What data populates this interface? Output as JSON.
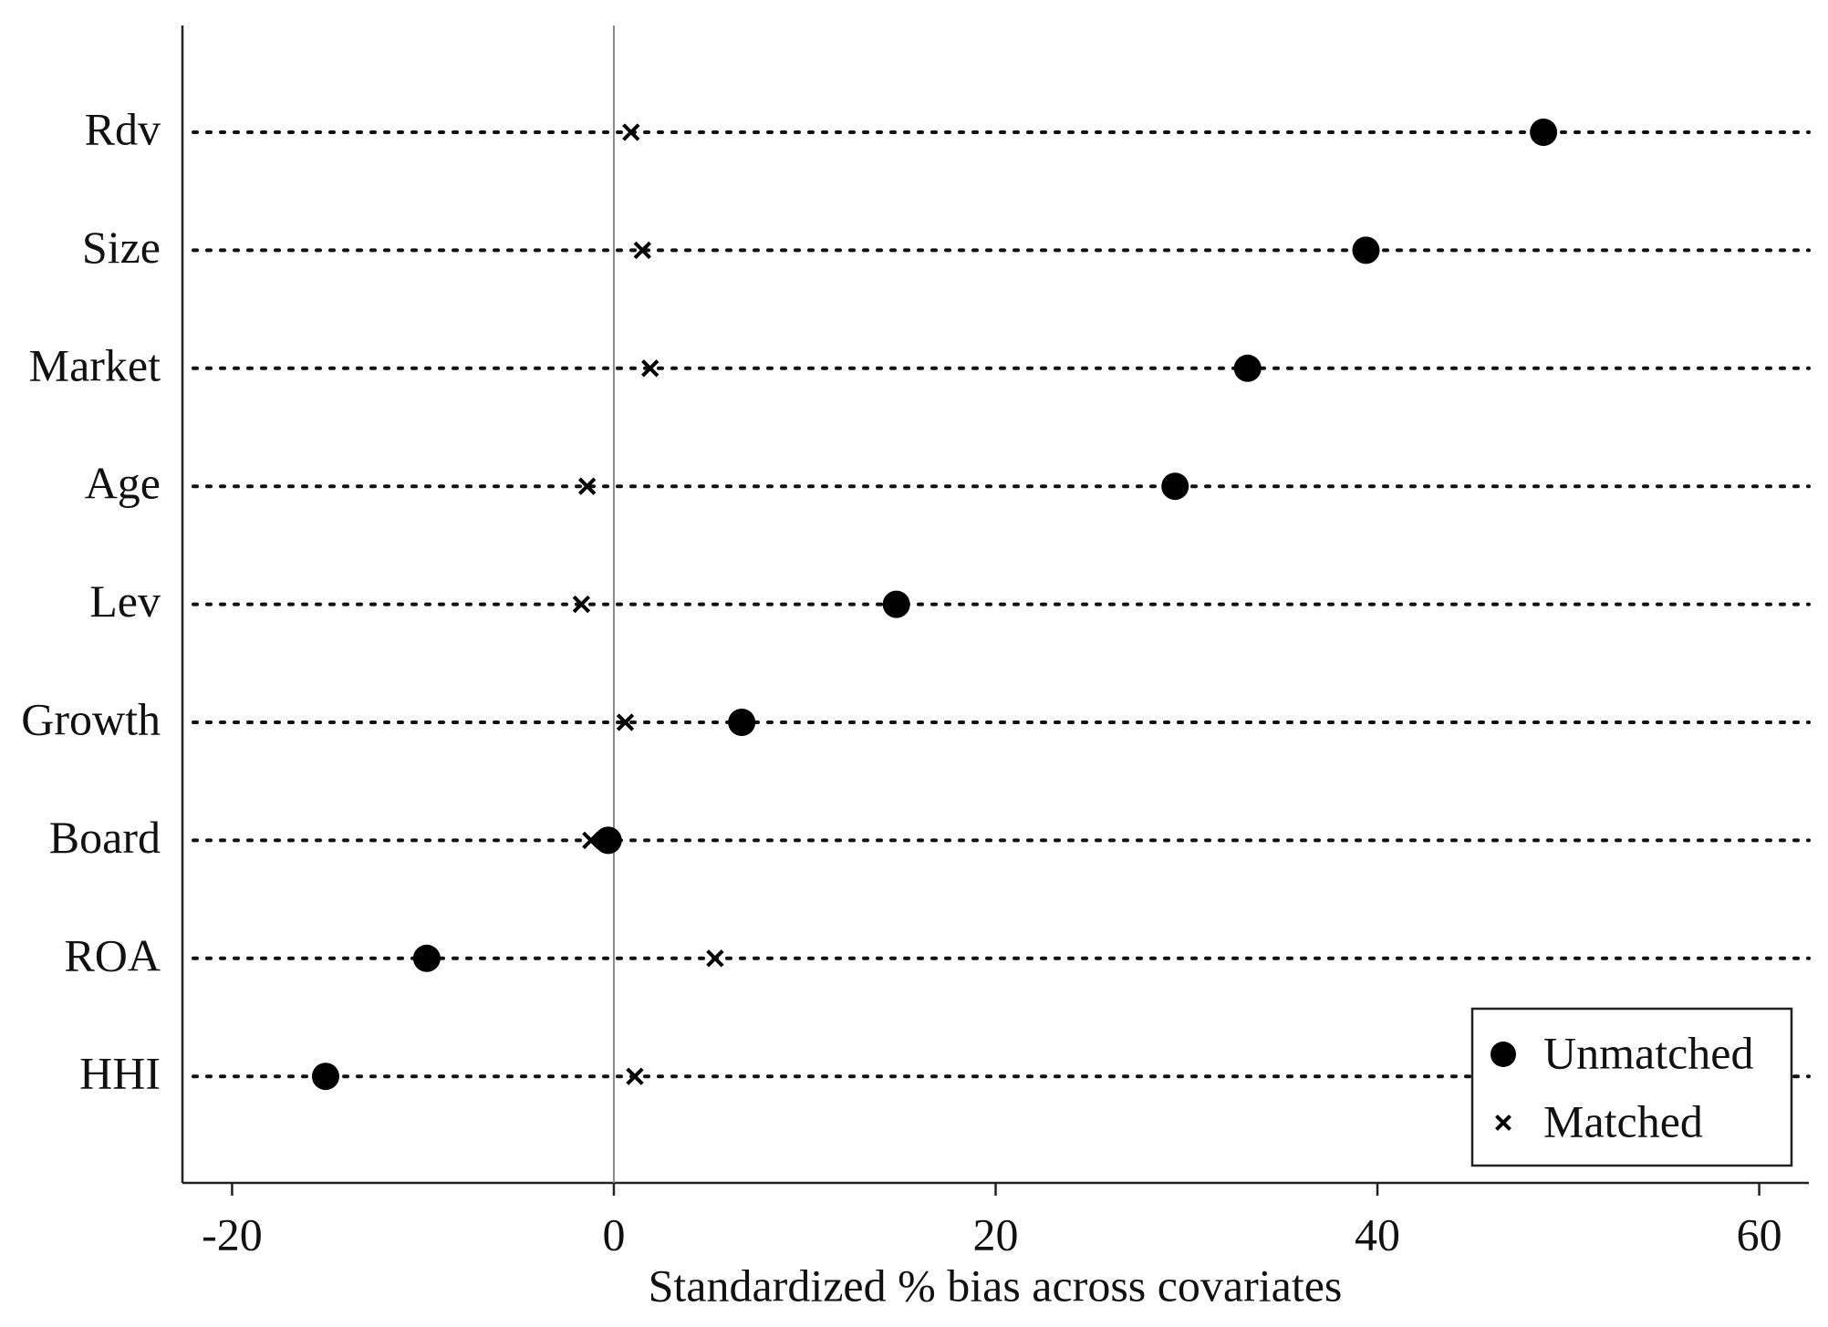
{
  "chart_data": {
    "type": "dot",
    "x_label": "Standardized % bias across covariates",
    "categories": [
      "Rdv",
      "Size",
      "Market",
      "Age",
      "Lev",
      "Growth",
      "Board",
      "ROA",
      "HHI"
    ],
    "series": [
      {
        "name": "Unmatched",
        "marker": "circle",
        "color": "#000000",
        "values": [
          48.7,
          39.4,
          33.2,
          29.4,
          14.8,
          6.7,
          -0.3,
          -9.8,
          -15.1
        ]
      },
      {
        "name": "Matched",
        "marker": "x",
        "color": "#000000",
        "values": [
          0.9,
          1.5,
          1.9,
          -1.4,
          -1.7,
          0.6,
          -1.2,
          5.3,
          1.1
        ]
      }
    ],
    "xlim": [
      -22.6,
      62.6
    ],
    "xticks": [
      -20,
      0,
      20,
      40,
      60
    ],
    "zero_line": true,
    "legend": "lower right"
  }
}
